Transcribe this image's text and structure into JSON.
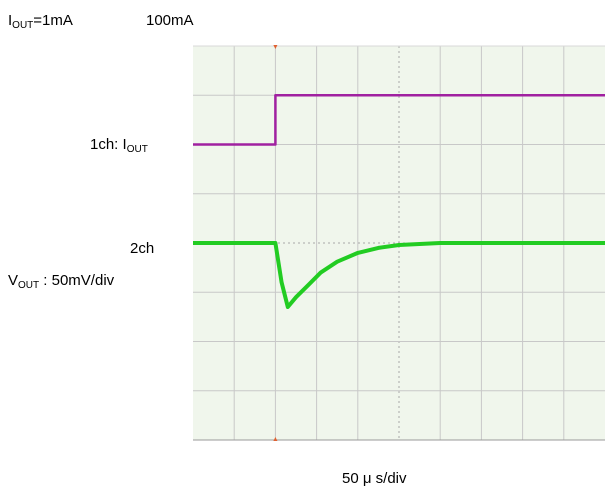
{
  "chart_data": {
    "type": "line",
    "annotations": {
      "before_current": {
        "main": "I",
        "sub": "OUT",
        "rest": "=1mA"
      },
      "after_current": "100mA",
      "ch1": {
        "prefix": "1ch: I",
        "sub": "OUT"
      },
      "ch2": "2ch",
      "vout": {
        "main": "V",
        "sub": "OUT",
        "rest": " : 50mV/div"
      },
      "timebase": "50 μ s/div"
    },
    "grid": true,
    "divisions": {
      "x": 10,
      "y": 8
    },
    "xlim": [
      0,
      10
    ],
    "ylim": [
      -4,
      4
    ],
    "series": [
      {
        "channel": "1ch",
        "color": "#a020a0",
        "x": [
          0,
          2.0,
          2.0,
          10
        ],
        "y": [
          2.0,
          2.0,
          3.0,
          3.0
        ]
      },
      {
        "channel": "2ch",
        "color": "#22cc22",
        "x": [
          0,
          1.5,
          2.0,
          2.15,
          2.3,
          2.5,
          2.8,
          3.1,
          3.5,
          4.0,
          4.5,
          5.0,
          6.0,
          7.0,
          8.0,
          9.0,
          10
        ],
        "y": [
          0.0,
          0.0,
          0.0,
          -0.8,
          -1.3,
          -1.1,
          -0.85,
          -0.6,
          -0.38,
          -0.2,
          -0.1,
          -0.04,
          0.0,
          0.0,
          0.0,
          0.0,
          0.0
        ]
      }
    ],
    "trigger_x": 2.0,
    "trigger_color": "#e06030"
  }
}
